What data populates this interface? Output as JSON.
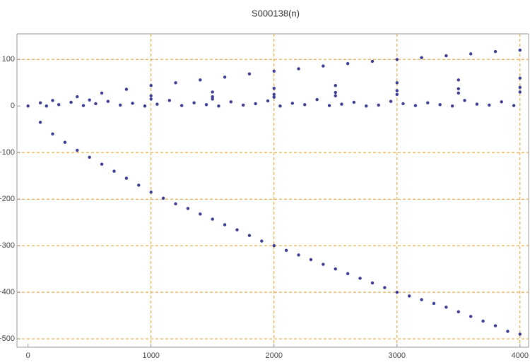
{
  "chart_data": {
    "type": "scatter",
    "title": "S000138(n)",
    "color": "#3b3b96",
    "grid": true,
    "grid_color": "#e69a1f",
    "xlim": [
      -90,
      4070
    ],
    "ylim": [
      -518,
      155
    ],
    "xticks": [
      0,
      1000,
      2000,
      3000,
      4000
    ],
    "yticks": [
      {
        "value": -500,
        "label": "−500"
      },
      {
        "value": -400,
        "label": "−400"
      },
      {
        "value": -300,
        "label": "−300"
      },
      {
        "value": -200,
        "label": "−200"
      },
      {
        "value": -100,
        "label": "−100"
      },
      0,
      100
    ],
    "x": [
      0,
      100,
      200,
      300,
      400,
      500,
      600,
      700,
      800,
      900,
      1000,
      1100,
      1200,
      1300,
      1400,
      1500,
      1600,
      1700,
      1800,
      1900,
      2000,
      2100,
      2200,
      2300,
      2400,
      2500,
      2600,
      2700,
      2800,
      2900,
      3000,
      3100,
      3200,
      3300,
      3400,
      3500,
      3600,
      3700,
      3800,
      3900,
      4000,
      100,
      200,
      400,
      600,
      800,
      1000,
      1200,
      1400,
      1600,
      1800,
      2000,
      2200,
      2400,
      2600,
      2800,
      3000,
      3200,
      3400,
      3600,
      3800,
      4000,
      500,
      1000,
      1500,
      2000,
      2500,
      3000,
      3500,
      4000,
      1000,
      1500,
      2000,
      2500,
      3000,
      3500,
      4000,
      1500,
      2000,
      2500,
      3000,
      3500,
      4000,
      150,
      250,
      350,
      450,
      550,
      650,
      750,
      850,
      950,
      1050,
      1150,
      1250,
      1350,
      1450,
      1550,
      1650,
      1750,
      1850,
      1950,
      2050,
      2150,
      2250,
      2350,
      2450,
      2550,
      2650,
      2750,
      2850,
      2950,
      3050,
      3150,
      3250,
      3350,
      3450,
      3550,
      3650,
      3750,
      3850,
      3950
    ],
    "values": [
      0,
      -35,
      -60,
      -78,
      -95,
      -110,
      -125,
      -140,
      -155,
      -170,
      -185,
      -198,
      -210,
      -220,
      -232,
      -243,
      -255,
      -266,
      -278,
      -290,
      -300,
      -310,
      -320,
      -330,
      -340,
      -350,
      -360,
      -370,
      -380,
      -390,
      -400,
      -408,
      -416,
      -424,
      -432,
      -442,
      -452,
      -462,
      -472,
      -484,
      -490,
      7,
      12,
      20,
      28,
      36,
      44,
      50,
      56,
      62,
      69,
      75,
      80,
      86,
      91,
      96,
      100,
      104,
      108,
      112,
      117,
      120,
      13,
      22,
      30,
      38,
      44,
      50,
      56,
      60,
      15,
      20,
      25,
      29,
      33,
      37,
      40,
      15,
      19,
      22,
      25,
      28,
      30,
      0,
      3,
      8,
      1,
      5,
      10,
      2,
      6,
      0,
      4,
      12,
      1,
      7,
      3,
      0,
      9,
      2,
      5,
      11,
      0,
      6,
      3,
      14,
      1,
      4,
      8,
      0,
      2,
      10,
      5,
      1,
      7,
      3,
      0,
      12,
      4,
      2,
      9,
      1
    ]
  }
}
